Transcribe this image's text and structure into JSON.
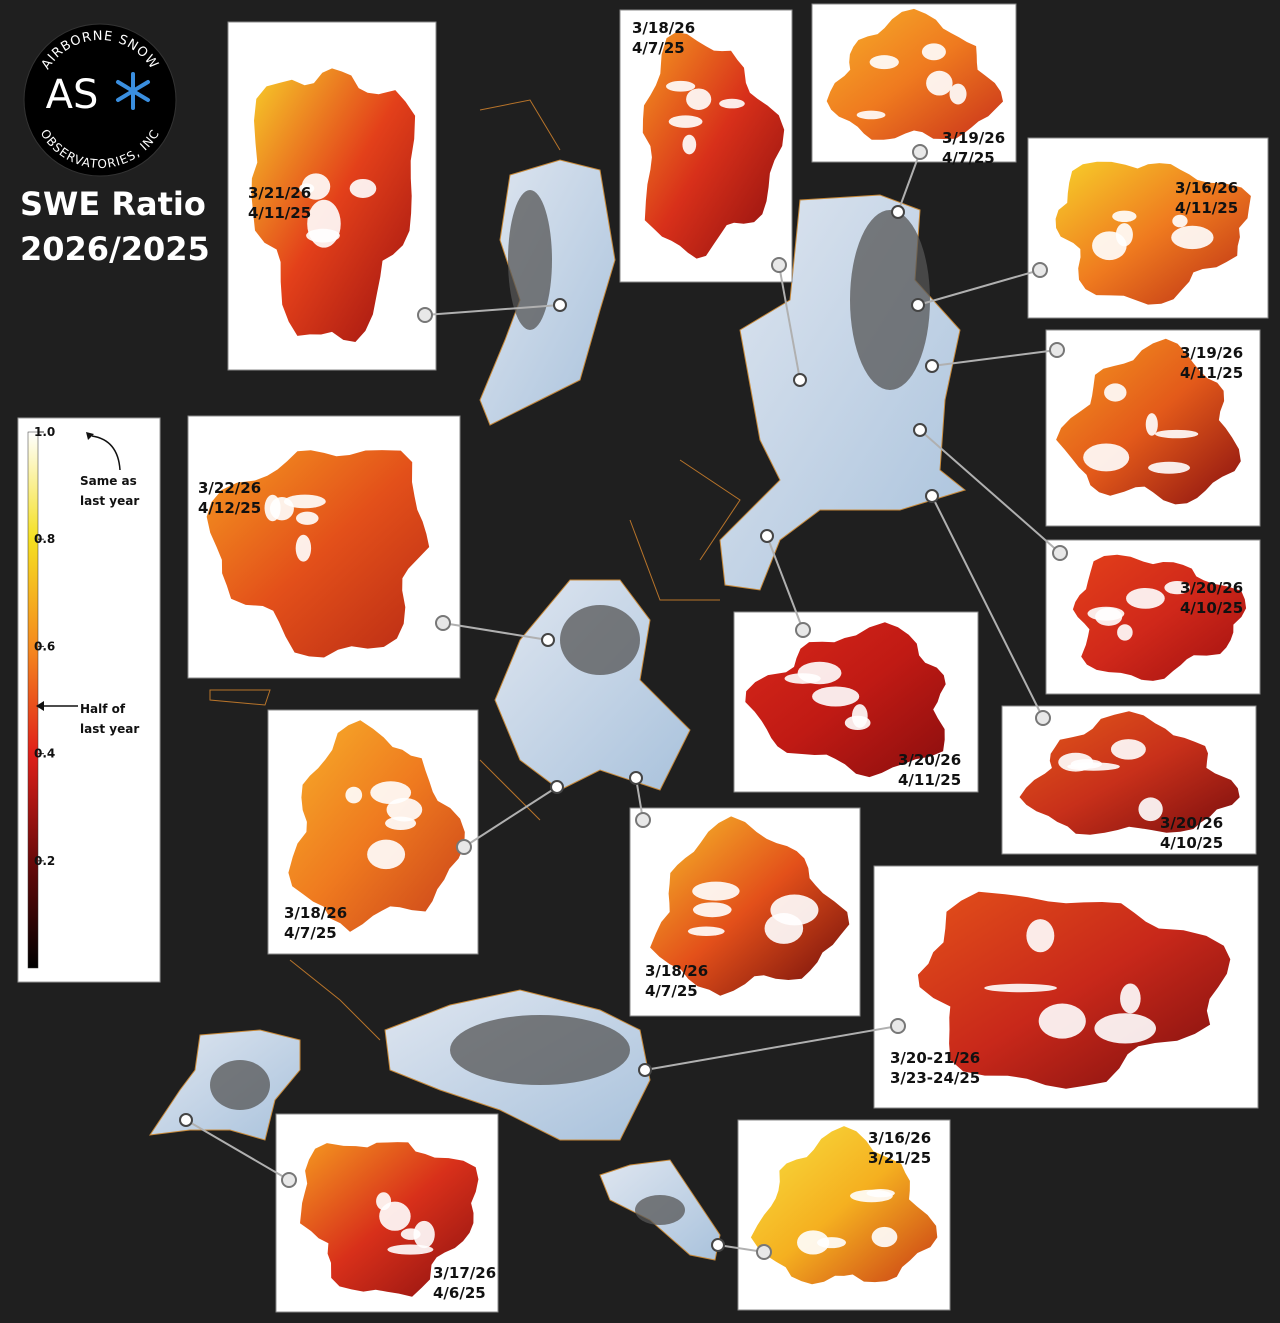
{
  "logo": {
    "top_text": "AIRBORNE SNOW",
    "mark": "AS",
    "bottom_text": "OBSERVATORIES, INC"
  },
  "title": [
    "SWE Ratio",
    "2026/2025"
  ],
  "legend": {
    "range": [
      0,
      1
    ],
    "ticks": [
      {
        "value": 1,
        "label": "1.0"
      },
      0.8,
      0.6,
      0.4,
      0.2
    ],
    "annotations": [
      [
        "Same as",
        "last year"
      ],
      [
        "Half of",
        "last year"
      ]
    ]
  },
  "panels": [
    {
      "dates": [
        "3/21/26",
        "4/11/25"
      ]
    },
    {
      "dates": [
        "3/18/26",
        "4/7/25"
      ]
    },
    {
      "dates": [
        "3/19/26",
        "4/7/25"
      ]
    },
    {
      "dates": [
        "3/16/26",
        "4/11/25"
      ]
    },
    {
      "dates": [
        "3/19/26",
        "4/11/25"
      ]
    },
    {
      "dates": [
        "3/20/26",
        "4/10/25"
      ]
    },
    {
      "dates": [
        "3/20/26",
        "4/10/25"
      ]
    },
    {
      "dates": [
        "3/22/26",
        "4/12/25"
      ]
    },
    {
      "dates": [
        "3/20/26",
        "4/11/25"
      ]
    },
    {
      "dates": [
        "3/18/26",
        "4/7/25"
      ]
    },
    {
      "dates": [
        "3/18/26",
        "4/7/25"
      ]
    },
    {
      "dates": [
        "3/20-21/26",
        "3/23-24/25"
      ]
    },
    {
      "dates": [
        "3/17/26",
        "4/6/25"
      ]
    },
    {
      "dates": [
        "3/16/26",
        "3/21/25"
      ]
    }
  ]
}
